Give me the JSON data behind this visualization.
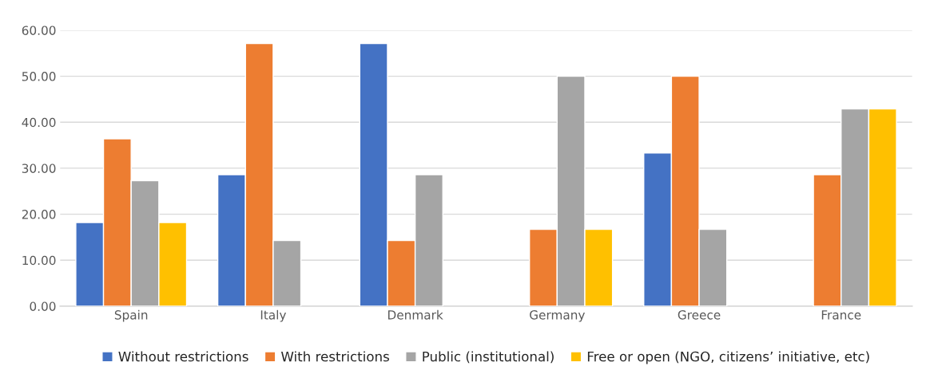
{
  "chart_data": {
    "type": "bar",
    "categories": [
      "Spain",
      "Italy",
      "Denmark",
      "Germany",
      "Greece",
      "France"
    ],
    "series": [
      {
        "name": "Without restrictions",
        "color": "#4472c4",
        "values": [
          18.2,
          28.6,
          57.1,
          null,
          33.3,
          null
        ]
      },
      {
        "name": "With restrictions",
        "color": "#ed7d31",
        "values": [
          36.4,
          57.1,
          14.3,
          16.7,
          50.0,
          28.6
        ]
      },
      {
        "name": "Public (institutional)",
        "color": "#a5a5a5",
        "values": [
          27.3,
          14.3,
          28.6,
          50.0,
          16.7,
          42.9
        ]
      },
      {
        "name": "Free or open (NGO, citizens’ initiative, etc)",
        "color": "#ffc000",
        "values": [
          18.2,
          null,
          null,
          16.7,
          null,
          42.9
        ]
      }
    ],
    "ylim": [
      0,
      60
    ],
    "yticks": [
      {
        "value": 0,
        "label": "0.00"
      },
      {
        "value": 10,
        "label": "10.00"
      },
      {
        "value": 20,
        "label": "20.00"
      },
      {
        "value": 30,
        "label": "30.00"
      },
      {
        "value": 40,
        "label": "40.00"
      },
      {
        "value": 50,
        "label": "50.00"
      },
      {
        "value": 60,
        "label": "60.00"
      }
    ],
    "grid": "y",
    "legend": "bottom"
  }
}
